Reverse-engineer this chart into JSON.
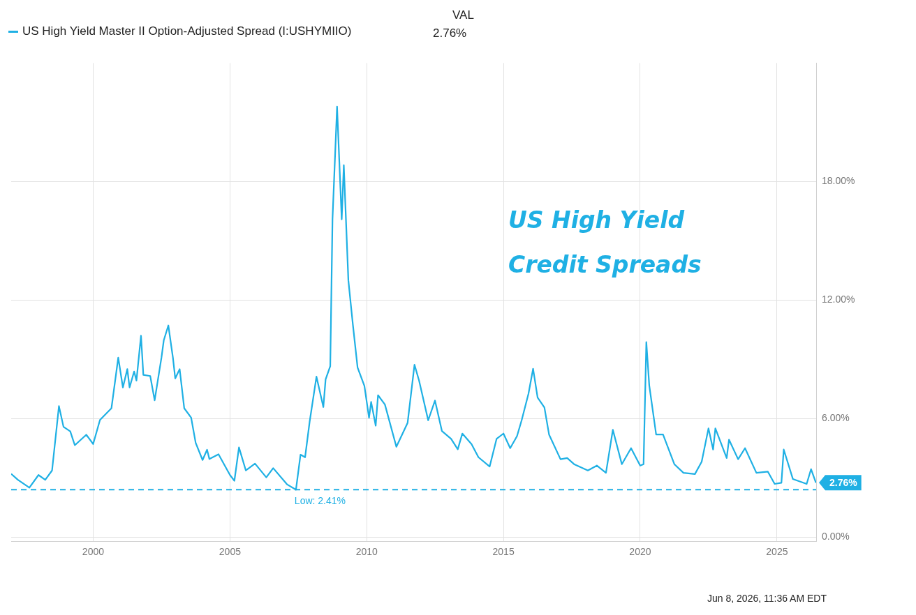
{
  "chart_data": {
    "type": "line",
    "title": "US High Yield Credit Spreads",
    "x": [
      "1997-01",
      "1997-04",
      "1997-09",
      "1998-01",
      "1998-04",
      "1998-07",
      "1998-10",
      "1998-12",
      "1999-03",
      "1999-05",
      "1999-10",
      "2000-01",
      "2000-04",
      "2000-09",
      "2000-12",
      "2001-02",
      "2001-04",
      "2001-05",
      "2001-07",
      "2001-08",
      "2001-10",
      "2001-11",
      "2002-02",
      "2002-04",
      "2002-07",
      "2002-08",
      "2002-10",
      "2002-12",
      "2003-01",
      "2003-03",
      "2003-05",
      "2003-08",
      "2003-10",
      "2004-01",
      "2004-03",
      "2004-04",
      "2004-08",
      "2005-01",
      "2005-03",
      "2005-05",
      "2005-08",
      "2005-12",
      "2006-05",
      "2006-08",
      "2007-02",
      "2007-06",
      "2007-08",
      "2007-10",
      "2007-12",
      "2008-03",
      "2008-06",
      "2008-07",
      "2008-09",
      "2008-10",
      "2008-12",
      "2009-02",
      "2009-03",
      "2009-05",
      "2009-07",
      "2009-09",
      "2009-12",
      "2010-02",
      "2010-03",
      "2010-05",
      "2010-06",
      "2010-09",
      "2011-02",
      "2011-07",
      "2011-10",
      "2011-12",
      "2012-04",
      "2012-07",
      "2012-10",
      "2013-02",
      "2013-05",
      "2013-07",
      "2013-11",
      "2014-02",
      "2014-07",
      "2014-10",
      "2015-01",
      "2015-04",
      "2015-07",
      "2015-09",
      "2015-12",
      "2016-02",
      "2016-04",
      "2016-07",
      "2016-09",
      "2017-02",
      "2017-05",
      "2017-08",
      "2018-02",
      "2018-06",
      "2018-10",
      "2019-01",
      "2019-05",
      "2019-09",
      "2020-01",
      "2020-02-15",
      "2020-03-23",
      "2020-05",
      "2020-08",
      "2020-11",
      "2021-04",
      "2021-08",
      "2022-01",
      "2022-04",
      "2022-07",
      "2022-09",
      "2022-10",
      "2023-03",
      "2023-04",
      "2023-08",
      "2023-11",
      "2024-04",
      "2024-09",
      "2024-12",
      "2025-03",
      "2025-04",
      "2025-08",
      "2026-02",
      "2026-04",
      "2026-06-05"
    ],
    "series": [
      {
        "name": "US High Yield Master II Option-Adjusted Spread (I:USHYMIIO)",
        "color": "#1fb0e4",
        "values": [
          3.21,
          2.91,
          2.51,
          3.15,
          2.91,
          3.38,
          6.64,
          5.59,
          5.36,
          4.66,
          5.19,
          4.72,
          5.94,
          6.53,
          9.09,
          7.58,
          8.51,
          7.58,
          8.39,
          7.93,
          10.2,
          8.22,
          8.16,
          6.93,
          9.09,
          9.97,
          10.72,
          9.09,
          8.04,
          8.51,
          6.53,
          6.06,
          4.78,
          3.91,
          4.43,
          3.96,
          4.2,
          3.15,
          2.86,
          4.55,
          3.38,
          3.73,
          3.03,
          3.5,
          2.68,
          2.41,
          4.18,
          4.05,
          5.85,
          8.13,
          6.59,
          7.99,
          8.66,
          16.09,
          21.8,
          16.09,
          18.83,
          13.0,
          10.73,
          8.59,
          7.66,
          6.05,
          6.85,
          5.65,
          7.19,
          6.72,
          4.58,
          5.79,
          8.73,
          7.93,
          5.92,
          6.92,
          5.38,
          4.98,
          4.45,
          5.25,
          4.71,
          4.05,
          3.58,
          4.98,
          5.25,
          4.51,
          5.12,
          5.92,
          7.26,
          8.53,
          7.07,
          6.57,
          5.2,
          3.95,
          4.01,
          3.7,
          3.38,
          3.63,
          3.26,
          5.44,
          3.7,
          4.51,
          3.63,
          3.7,
          9.88,
          7.69,
          5.2,
          5.2,
          3.7,
          3.26,
          3.2,
          3.82,
          5.51,
          4.44,
          5.51,
          4.01,
          4.94,
          3.95,
          4.51,
          3.26,
          3.32,
          2.7,
          2.76,
          4.44,
          2.95,
          2.7,
          3.45,
          2.76
        ]
      }
    ],
    "xlim": [
      "1997-01",
      "2026-06-08"
    ],
    "xticks": [
      {
        "value": "2000-01",
        "label": "2000"
      },
      {
        "value": "2005-01",
        "label": "2005"
      },
      {
        "value": "2010-01",
        "label": "2010"
      },
      {
        "value": "2015-01",
        "label": "2015"
      },
      {
        "value": "2020-01",
        "label": "2020"
      },
      {
        "value": "2025-01",
        "label": "2025"
      }
    ],
    "ylim": [
      -0.2,
      24
    ],
    "yticks": [
      {
        "value": 0,
        "label": "0.00%"
      },
      {
        "value": 6,
        "label": "6.00%"
      },
      {
        "value": 12,
        "label": "12.00%"
      },
      {
        "value": 18,
        "label": "18.00%"
      }
    ],
    "grid": true,
    "legend": "top left",
    "ref_lines": [
      {
        "axis": "y",
        "value": 2.41,
        "label": "Low: 2.41%",
        "color": "#1fb0e4",
        "line_style": "dashed"
      }
    ],
    "annotations": [
      "VAL",
      "2.76%",
      {
        "text": "2.76%",
        "x": "2026-06-05",
        "y": 2.76
      },
      "Jun 8, 2026, 11:36 AM EDT"
    ]
  }
}
